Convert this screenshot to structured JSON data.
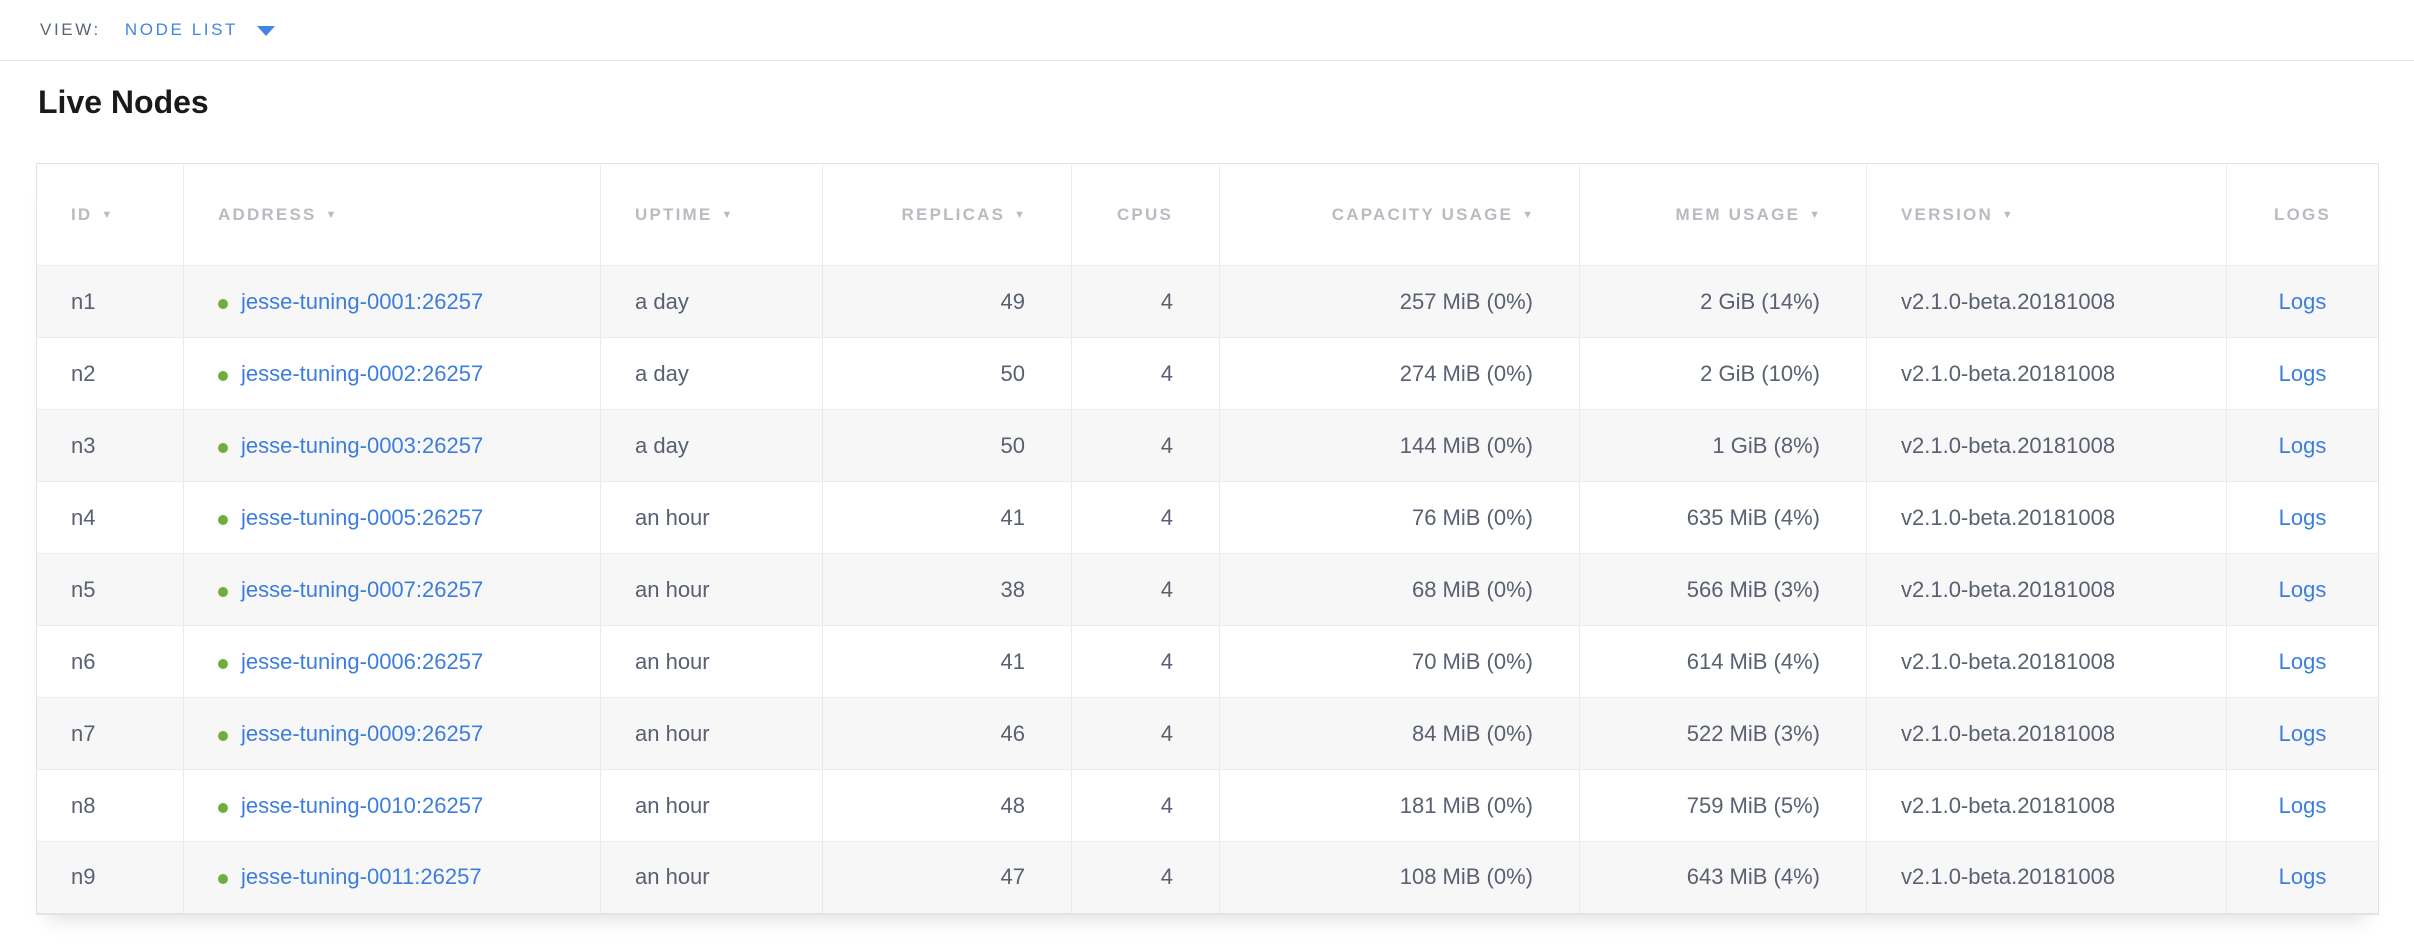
{
  "view_bar": {
    "label": "VIEW:",
    "selected_view": "NODE LIST",
    "caret_icon": "triangle-down"
  },
  "page": {
    "title": "Live Nodes"
  },
  "colors": {
    "accent_blue": "#4285e2",
    "link_blue": "#3c7dde",
    "status_live_green": "#6fae3e",
    "header_text_gray": "#b9bbc0",
    "body_text_slate": "#596072",
    "zebra_row_gray": "#f7f7f7",
    "border_gray": "#ebebeb"
  },
  "icons": {
    "sort_arrow": "▼",
    "dropdown_caret": "▾",
    "node_status": "circle"
  },
  "table": {
    "columns": [
      {
        "key": "id",
        "label": "ID",
        "sortable": true,
        "align": "left"
      },
      {
        "key": "address",
        "label": "ADDRESS",
        "sortable": true,
        "align": "left"
      },
      {
        "key": "uptime",
        "label": "UPTIME",
        "sortable": true,
        "align": "left"
      },
      {
        "key": "replicas",
        "label": "REPLICAS",
        "sortable": true,
        "align": "right"
      },
      {
        "key": "cpus",
        "label": "CPUS",
        "sortable": false,
        "align": "right"
      },
      {
        "key": "capacity",
        "label": "CAPACITY USAGE",
        "sortable": true,
        "align": "right"
      },
      {
        "key": "mem",
        "label": "MEM USAGE",
        "sortable": true,
        "align": "right"
      },
      {
        "key": "version",
        "label": "VERSION",
        "sortable": true,
        "align": "left"
      },
      {
        "key": "logs",
        "label": "LOGS",
        "sortable": false,
        "align": "center"
      }
    ],
    "rows": [
      {
        "id": "n1",
        "address": "jesse-tuning-0001:26257",
        "uptime": "a day",
        "replicas": "49",
        "cpus": "4",
        "capacity": "257 MiB (0%)",
        "mem": "2 GiB (14%)",
        "version": "v2.1.0-beta.20181008",
        "logs": "Logs"
      },
      {
        "id": "n2",
        "address": "jesse-tuning-0002:26257",
        "uptime": "a day",
        "replicas": "50",
        "cpus": "4",
        "capacity": "274 MiB (0%)",
        "mem": "2 GiB (10%)",
        "version": "v2.1.0-beta.20181008",
        "logs": "Logs"
      },
      {
        "id": "n3",
        "address": "jesse-tuning-0003:26257",
        "uptime": "a day",
        "replicas": "50",
        "cpus": "4",
        "capacity": "144 MiB (0%)",
        "mem": "1 GiB (8%)",
        "version": "v2.1.0-beta.20181008",
        "logs": "Logs"
      },
      {
        "id": "n4",
        "address": "jesse-tuning-0005:26257",
        "uptime": "an hour",
        "replicas": "41",
        "cpus": "4",
        "capacity": "76 MiB (0%)",
        "mem": "635 MiB (4%)",
        "version": "v2.1.0-beta.20181008",
        "logs": "Logs"
      },
      {
        "id": "n5",
        "address": "jesse-tuning-0007:26257",
        "uptime": "an hour",
        "replicas": "38",
        "cpus": "4",
        "capacity": "68 MiB (0%)",
        "mem": "566 MiB (3%)",
        "version": "v2.1.0-beta.20181008",
        "logs": "Logs"
      },
      {
        "id": "n6",
        "address": "jesse-tuning-0006:26257",
        "uptime": "an hour",
        "replicas": "41",
        "cpus": "4",
        "capacity": "70 MiB (0%)",
        "mem": "614 MiB (4%)",
        "version": "v2.1.0-beta.20181008",
        "logs": "Logs"
      },
      {
        "id": "n7",
        "address": "jesse-tuning-0009:26257",
        "uptime": "an hour",
        "replicas": "46",
        "cpus": "4",
        "capacity": "84 MiB (0%)",
        "mem": "522 MiB (3%)",
        "version": "v2.1.0-beta.20181008",
        "logs": "Logs"
      },
      {
        "id": "n8",
        "address": "jesse-tuning-0010:26257",
        "uptime": "an hour",
        "replicas": "48",
        "cpus": "4",
        "capacity": "181 MiB (0%)",
        "mem": "759 MiB (5%)",
        "version": "v2.1.0-beta.20181008",
        "logs": "Logs"
      },
      {
        "id": "n9",
        "address": "jesse-tuning-0011:26257",
        "uptime": "an hour",
        "replicas": "47",
        "cpus": "4",
        "capacity": "108 MiB (0%)",
        "mem": "643 MiB (4%)",
        "version": "v2.1.0-beta.20181008",
        "logs": "Logs"
      }
    ]
  }
}
